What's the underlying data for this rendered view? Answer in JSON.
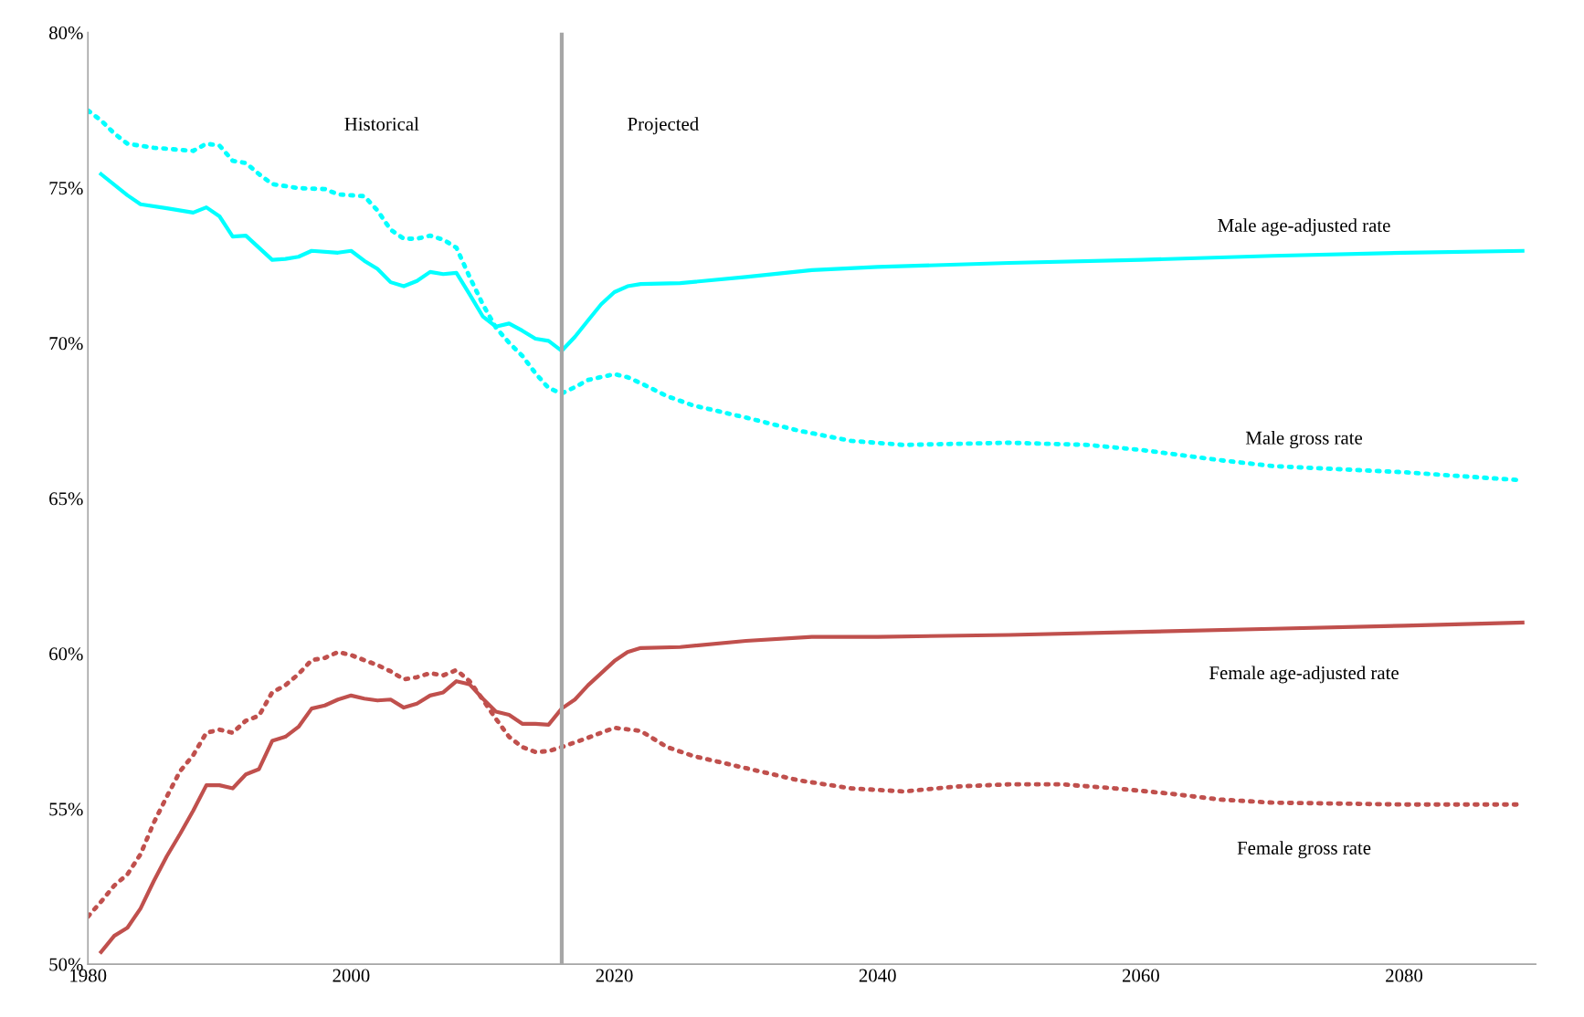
{
  "chart_data": {
    "type": "line",
    "xlim": [
      1980,
      2090
    ],
    "xticks": [
      1980,
      2000,
      2020,
      2040,
      2060,
      2080
    ],
    "ylim": [
      50,
      80
    ],
    "yticks": [
      {
        "value": 50,
        "label": "50%"
      },
      {
        "value": 55,
        "label": "55%"
      },
      {
        "value": 60,
        "label": "60%"
      },
      {
        "value": 65,
        "label": "65%"
      },
      {
        "value": 70,
        "label": "70%"
      },
      {
        "value": 75,
        "label": "75%"
      },
      {
        "value": 80,
        "label": "80%"
      }
    ],
    "grid": false,
    "legend": false,
    "marker": "none",
    "ref_lines": [
      {
        "axis": "x",
        "value": 2016,
        "color": "#a6a6a6",
        "line_style": "solid"
      }
    ],
    "annotations": [
      "Historical",
      "Projected"
    ],
    "series": [
      {
        "name": "Male age-adjusted rate",
        "color": "#00ffff",
        "line_style": "solid",
        "x": [
          1981,
          1983,
          1984,
          1986,
          1988,
          1989,
          1990,
          1991,
          1992,
          1993,
          1994,
          1995,
          1996,
          1997,
          1999,
          2000,
          2001,
          2002,
          2003,
          2004,
          2005,
          2006,
          2007,
          2008,
          2009,
          2010,
          2011,
          2012,
          2013,
          2014,
          2015,
          2016,
          2017,
          2018,
          2019,
          2020,
          2021,
          2022,
          2025,
          2030,
          2035,
          2040,
          2050,
          2060,
          2070,
          2080,
          2089
        ],
        "values": [
          75.44,
          74.76,
          74.47,
          74.34,
          74.2,
          74.37,
          74.08,
          73.43,
          73.46,
          73.07,
          72.68,
          72.71,
          72.78,
          72.97,
          72.91,
          72.97,
          72.65,
          72.39,
          71.96,
          71.83,
          72.0,
          72.29,
          72.22,
          72.26,
          71.57,
          70.86,
          70.53,
          70.63,
          70.4,
          70.14,
          70.07,
          69.75,
          70.2,
          70.73,
          71.25,
          71.64,
          71.83,
          71.9,
          71.93,
          72.13,
          72.35,
          72.45,
          72.58,
          72.68,
          72.81,
          72.91,
          72.97
        ]
      },
      {
        "name": "Male gross rate",
        "color": "#00ffff",
        "line_style": "dotted",
        "x": [
          1980,
          1981,
          1982,
          1983,
          1985,
          1988,
          1989,
          1990,
          1991,
          1992,
          1993,
          1994,
          1996,
          1998,
          1999,
          2001,
          2002,
          2003,
          2004,
          2005,
          2006,
          2007,
          2008,
          2009,
          2010,
          2011,
          2012,
          2013,
          2014,
          2015,
          2016,
          2017,
          2018,
          2020,
          2021,
          2022,
          2024,
          2026,
          2030,
          2034,
          2038,
          2042,
          2050,
          2056,
          2060,
          2066,
          2070,
          2080,
          2089
        ],
        "values": [
          77.49,
          77.17,
          76.75,
          76.42,
          76.29,
          76.19,
          76.42,
          76.36,
          75.87,
          75.8,
          75.44,
          75.12,
          74.99,
          74.96,
          74.79,
          74.73,
          74.27,
          73.65,
          73.36,
          73.36,
          73.46,
          73.33,
          73.07,
          72.13,
          71.25,
          70.5,
          70.01,
          69.59,
          69.03,
          68.55,
          68.38,
          68.58,
          68.81,
          69.0,
          68.9,
          68.71,
          68.29,
          67.99,
          67.6,
          67.18,
          66.85,
          66.72,
          66.79,
          66.72,
          66.56,
          66.23,
          66.04,
          65.84,
          65.58
        ]
      },
      {
        "name": "Female age-adjusted rate",
        "color": "#c0504d",
        "line_style": "solid",
        "x": [
          1981,
          1982,
          1983,
          1984,
          1985,
          1986,
          1987,
          1988,
          1989,
          1990,
          1991,
          1992,
          1993,
          1994,
          1995,
          1996,
          1997,
          1998,
          1999,
          2000,
          2001,
          2002,
          2003,
          2004,
          2005,
          2006,
          2007,
          2008,
          2009,
          2010,
          2011,
          2012,
          2013,
          2014,
          2015,
          2016,
          2017,
          2018,
          2019,
          2020,
          2021,
          2022,
          2025,
          2030,
          2035,
          2040,
          2050,
          2060,
          2070,
          2080,
          2089
        ],
        "values": [
          50.39,
          50.91,
          51.17,
          51.79,
          52.67,
          53.48,
          54.19,
          54.94,
          55.76,
          55.76,
          55.66,
          56.11,
          56.28,
          57.19,
          57.32,
          57.64,
          58.23,
          58.33,
          58.52,
          58.65,
          58.55,
          58.49,
          58.52,
          58.26,
          58.39,
          58.65,
          58.75,
          59.11,
          59.01,
          58.55,
          58.13,
          58.03,
          57.74,
          57.74,
          57.71,
          58.23,
          58.52,
          58.98,
          59.37,
          59.76,
          60.05,
          60.18,
          60.21,
          60.41,
          60.54,
          60.54,
          60.6,
          60.7,
          60.8,
          60.9,
          61.0
        ]
      },
      {
        "name": "Female gross rate",
        "color": "#c0504d",
        "line_style": "dotted",
        "x": [
          1980,
          1981,
          1982,
          1983,
          1984,
          1985,
          1986,
          1987,
          1988,
          1989,
          1990,
          1991,
          1992,
          1993,
          1994,
          1995,
          1996,
          1997,
          1998,
          1999,
          2000,
          2001,
          2002,
          2003,
          2004,
          2005,
          2006,
          2007,
          2008,
          2009,
          2010,
          2011,
          2012,
          2013,
          2014,
          2015,
          2016,
          2018,
          2020,
          2022,
          2024,
          2026,
          2030,
          2034,
          2038,
          2042,
          2046,
          2050,
          2054,
          2058,
          2062,
          2066,
          2070,
          2080,
          2089
        ],
        "values": [
          51.53,
          52.01,
          52.53,
          52.89,
          53.54,
          54.55,
          55.4,
          56.21,
          56.73,
          57.45,
          57.55,
          57.45,
          57.84,
          58.0,
          58.75,
          58.98,
          59.34,
          59.79,
          59.86,
          60.05,
          59.95,
          59.79,
          59.63,
          59.43,
          59.17,
          59.24,
          59.37,
          59.3,
          59.47,
          59.11,
          58.52,
          57.9,
          57.32,
          56.99,
          56.83,
          56.86,
          56.99,
          57.29,
          57.61,
          57.51,
          56.99,
          56.7,
          56.31,
          55.92,
          55.66,
          55.56,
          55.72,
          55.79,
          55.79,
          55.66,
          55.5,
          55.3,
          55.2,
          55.14,
          55.14
        ]
      }
    ]
  }
}
